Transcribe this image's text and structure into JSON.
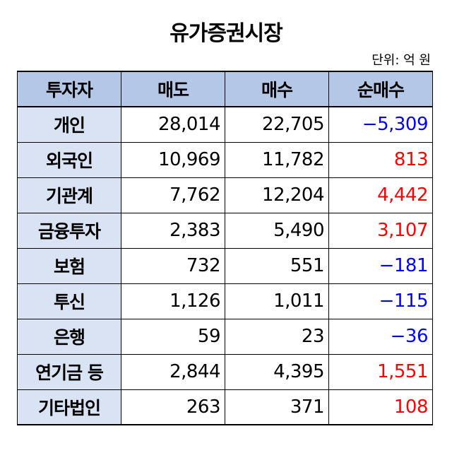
{
  "title": "유가증권시장",
  "unit": "단위: 억 원",
  "colors": {
    "header_bg": "#b4c7e7",
    "row_header_bg": "#dae3f3",
    "positive": "#ff0000",
    "negative": "#0000ff"
  },
  "table": {
    "headers": [
      "투자자",
      "매도",
      "매수",
      "순매수"
    ],
    "rows": [
      {
        "investor": "개인",
        "sell": "28,014",
        "buy": "22,705",
        "net": "−5,309",
        "net_sign": "neg"
      },
      {
        "investor": "외국인",
        "sell": "10,969",
        "buy": "11,782",
        "net": "813",
        "net_sign": "pos"
      },
      {
        "investor": "기관계",
        "sell": "7,762",
        "buy": "12,204",
        "net": "4,442",
        "net_sign": "pos"
      },
      {
        "investor": "금융투자",
        "sell": "2,383",
        "buy": "5,490",
        "net": "3,107",
        "net_sign": "pos"
      },
      {
        "investor": "보험",
        "sell": "732",
        "buy": "551",
        "net": "−181",
        "net_sign": "neg"
      },
      {
        "investor": "투신",
        "sell": "1,126",
        "buy": "1,011",
        "net": "−115",
        "net_sign": "neg"
      },
      {
        "investor": "은행",
        "sell": "59",
        "buy": "23",
        "net": "−36",
        "net_sign": "neg"
      },
      {
        "investor": "연기금 등",
        "sell": "2,844",
        "buy": "4,395",
        "net": "1,551",
        "net_sign": "pos"
      },
      {
        "investor": "기타법인",
        "sell": "263",
        "buy": "371",
        "net": "108",
        "net_sign": "pos"
      }
    ]
  }
}
